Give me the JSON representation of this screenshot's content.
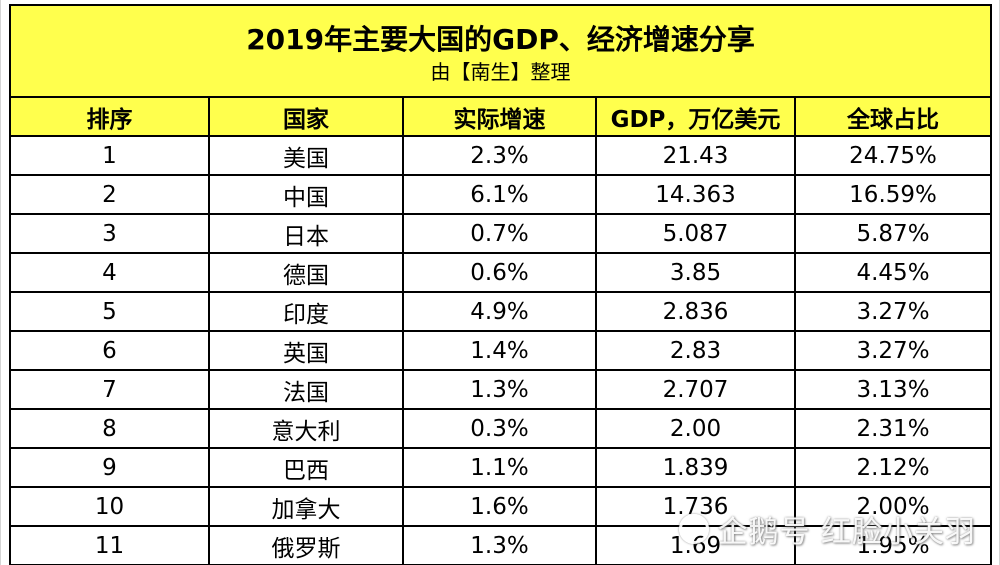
{
  "table": {
    "title": "2019年主要大国的GDP、经济增速分享",
    "subtitle": "由【南生】整理",
    "headers": [
      "排序",
      "国家",
      "实际增速",
      "GDP，万亿美元",
      "全球占比"
    ],
    "rows": [
      [
        "1",
        "美国",
        "2.3%",
        "21.43",
        "24.75%"
      ],
      [
        "2",
        "中国",
        "6.1%",
        "14.363",
        "16.59%"
      ],
      [
        "3",
        "日本",
        "0.7%",
        "5.087",
        "5.87%"
      ],
      [
        "4",
        "德国",
        "0.6%",
        "3.85",
        "4.45%"
      ],
      [
        "5",
        "印度",
        "4.9%",
        "2.836",
        "3.27%"
      ],
      [
        "6",
        "英国",
        "1.4%",
        "2.83",
        "3.27%"
      ],
      [
        "7",
        "法国",
        "1.3%",
        "2.707",
        "3.13%"
      ],
      [
        "8",
        "意大利",
        "0.3%",
        "2.00",
        "2.31%"
      ],
      [
        "9",
        "巴西",
        "1.1%",
        "1.839",
        "2.12%"
      ],
      [
        "10",
        "加拿大",
        "1.6%",
        "1.736",
        "2.00%"
      ],
      [
        "11",
        "俄罗斯",
        "1.3%",
        "1.69",
        "1.95%"
      ]
    ]
  },
  "watermark": {
    "text": "企鹅号 红脸小关羽",
    "icon": "penguin-logo-icon"
  },
  "colors": {
    "header_bg": "#ffff4d",
    "border": "#000000"
  }
}
